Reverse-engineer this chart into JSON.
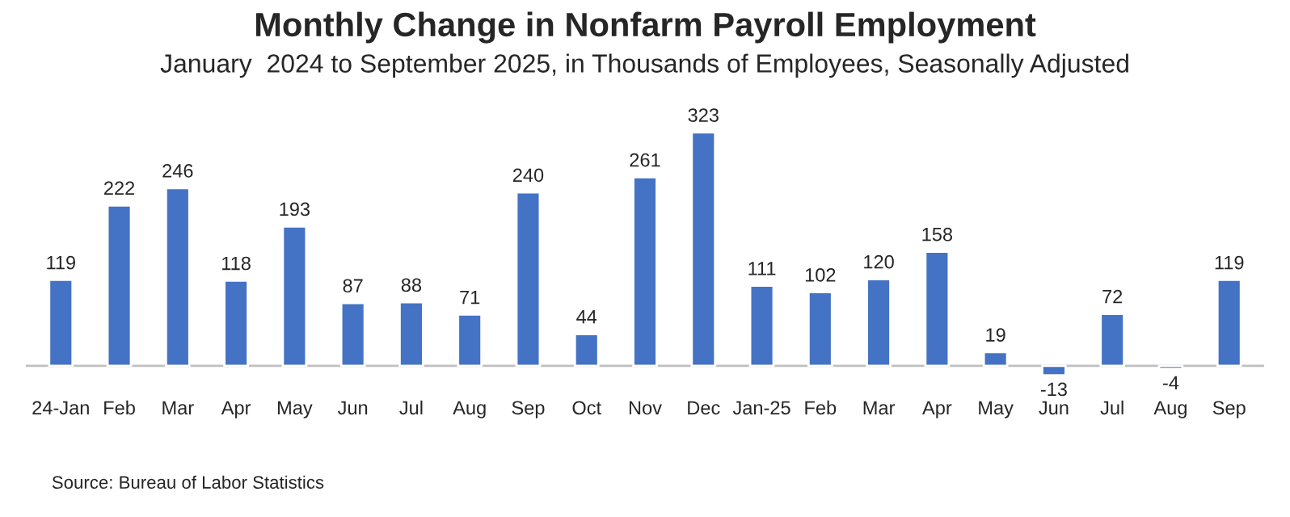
{
  "chart_data": {
    "type": "bar",
    "title": "Monthly Change in Nonfarm Payroll Employment",
    "subtitle": "January  2024 to September 2025, in Thousands of Employees, Seasonally Adjusted",
    "categories": [
      "24-Jan",
      "Feb",
      "Mar",
      "Apr",
      "May",
      "Jun",
      "Jul",
      "Aug",
      "Sep",
      "Oct",
      "Nov",
      "Dec",
      "Jan-25",
      "Feb",
      "Mar",
      "Apr",
      "May",
      "Jun",
      "Jul",
      "Aug",
      "Sep"
    ],
    "values": [
      119,
      222,
      246,
      118,
      193,
      87,
      88,
      71,
      240,
      44,
      261,
      323,
      111,
      102,
      120,
      158,
      19,
      -13,
      72,
      -4,
      119
    ],
    "color": "#4472c4",
    "data_labels": true,
    "grid": false,
    "legend": false,
    "annotations": [
      "Source: Bureau of Labor Statistics"
    ]
  }
}
